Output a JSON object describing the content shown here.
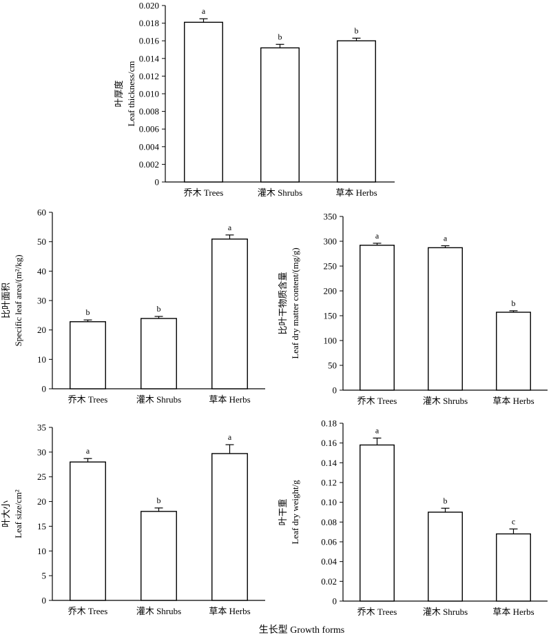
{
  "figure": {
    "xlabel": "生长型 Growth forms"
  },
  "chart_data": [
    {
      "id": "leaf-thickness",
      "type": "bar",
      "categories": [
        "乔木 Trees",
        "灌木 Shrubs",
        "草本 Herbs"
      ],
      "values": [
        0.0181,
        0.0152,
        0.016
      ],
      "errors": [
        0.0004,
        0.0004,
        0.0003
      ],
      "significance": [
        "a",
        "b",
        "b"
      ],
      "ylabel_cn": "叶厚度",
      "ylabel_en": "Leaf thickness/cm",
      "ylim": [
        0,
        0.02
      ],
      "yticks": [
        0,
        0.002,
        0.004,
        0.006,
        0.008,
        0.01,
        0.012,
        0.014,
        0.016,
        0.018,
        0.02
      ],
      "ytick_labels": [
        "0",
        "0.002",
        "0.004",
        "0.006",
        "0.008",
        "0.010",
        "0.012",
        "0.014",
        "0.016",
        "0.018",
        "0.020"
      ],
      "grid": false,
      "bar_fill": "#ffffff",
      "bar_stroke": "#000000"
    },
    {
      "id": "specific-leaf-area",
      "type": "bar",
      "categories": [
        "乔木 Trees",
        "灌木 Shrubs",
        "草本 Herbs"
      ],
      "values": [
        22.8,
        23.9,
        50.9
      ],
      "errors": [
        0.6,
        0.7,
        1.4
      ],
      "significance": [
        "b",
        "b",
        "a"
      ],
      "ylabel_cn": "比叶面积",
      "ylabel_en": "Specific leaf area/(m²/kg)",
      "ylim": [
        0,
        60
      ],
      "yticks": [
        0,
        10,
        20,
        30,
        40,
        50,
        60
      ],
      "ytick_labels": [
        "0",
        "10",
        "20",
        "30",
        "40",
        "50",
        "60"
      ],
      "grid": false,
      "bar_fill": "#ffffff",
      "bar_stroke": "#000000"
    },
    {
      "id": "leaf-dry-matter-content",
      "type": "bar",
      "categories": [
        "乔木 Trees",
        "灌木 Shrubs",
        "草本 Herbs"
      ],
      "values": [
        292,
        287,
        157
      ],
      "errors": [
        4,
        4,
        3
      ],
      "significance": [
        "a",
        "a",
        "b"
      ],
      "ylabel_cn": "比叶干物质含量",
      "ylabel_en": "Leaf dry matter content/(mg/g)",
      "ylim": [
        0,
        350
      ],
      "yticks": [
        0,
        50,
        100,
        150,
        200,
        250,
        300,
        350
      ],
      "ytick_labels": [
        "0",
        "50",
        "100",
        "150",
        "200",
        "250",
        "300",
        "350"
      ],
      "grid": false,
      "bar_fill": "#ffffff",
      "bar_stroke": "#000000"
    },
    {
      "id": "leaf-size",
      "type": "bar",
      "categories": [
        "乔木 Trees",
        "灌木 Shrubs",
        "草本 Herbs"
      ],
      "values": [
        28.0,
        18.0,
        29.7
      ],
      "errors": [
        0.7,
        0.7,
        1.8
      ],
      "significance": [
        "a",
        "b",
        "a"
      ],
      "ylabel_cn": "叶大小",
      "ylabel_en": "Leaf size/cm²",
      "ylim": [
        0,
        35
      ],
      "yticks": [
        0,
        5,
        10,
        15,
        20,
        25,
        30,
        35
      ],
      "ytick_labels": [
        "0",
        "5",
        "10",
        "15",
        "20",
        "25",
        "30",
        "35"
      ],
      "grid": false,
      "bar_fill": "#ffffff",
      "bar_stroke": "#000000"
    },
    {
      "id": "leaf-dry-weight",
      "type": "bar",
      "categories": [
        "乔木 Trees",
        "灌木 Shrubs",
        "草本 Herbs"
      ],
      "values": [
        0.158,
        0.09,
        0.068
      ],
      "errors": [
        0.007,
        0.004,
        0.005
      ],
      "significance": [
        "a",
        "b",
        "c"
      ],
      "ylabel_cn": "叶干重",
      "ylabel_en": "Leaf dry weight/g",
      "ylim": [
        0,
        0.18
      ],
      "yticks": [
        0,
        0.02,
        0.04,
        0.06,
        0.08,
        0.1,
        0.12,
        0.14,
        0.16,
        0.18
      ],
      "ytick_labels": [
        "0",
        "0.02",
        "0.04",
        "0.06",
        "0.08",
        "0.10",
        "0.12",
        "0.14",
        "0.16",
        "0.18"
      ],
      "grid": false,
      "bar_fill": "#ffffff",
      "bar_stroke": "#000000"
    }
  ]
}
